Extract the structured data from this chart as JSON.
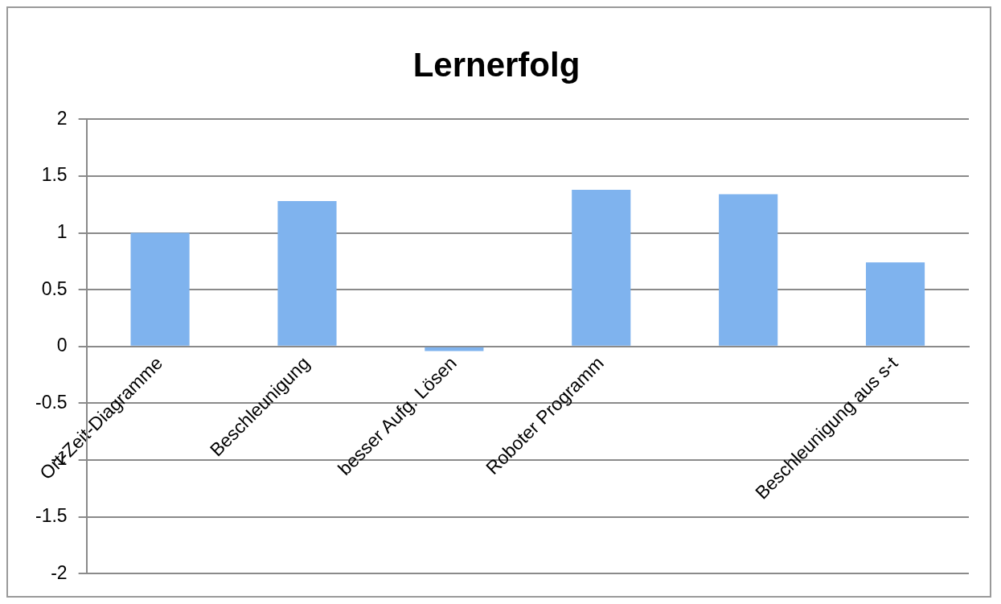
{
  "chart_data": {
    "type": "bar",
    "title": "Lernerfolg",
    "categories": [
      "Ort-Zeit-Diagramme",
      "Beschleunigung",
      "besser Aufg. Lösen",
      "Roboter Programm",
      null,
      "Beschleunigung aus s-t"
    ],
    "values": [
      1.0,
      1.28,
      -0.04,
      1.38,
      1.34,
      0.74
    ],
    "color": "#7fb3ee",
    "ylim": [
      -2,
      2
    ],
    "yticks": [
      -2,
      -1.5,
      -1,
      -0.5,
      0,
      0.5,
      1,
      1.5,
      2
    ],
    "grid": "y",
    "legend": false
  }
}
